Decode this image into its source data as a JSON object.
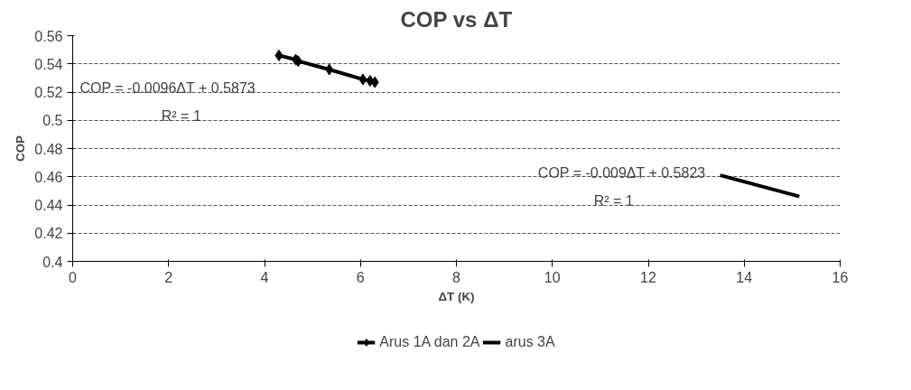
{
  "chart_data": {
    "type": "line",
    "title": "COP vs ΔT",
    "xlabel": "ΔT (K)",
    "ylabel": "COP",
    "xlim": [
      0,
      16
    ],
    "xticks": [
      0,
      2,
      4,
      6,
      8,
      10,
      12,
      14,
      16
    ],
    "ylim": [
      0.4,
      0.56
    ],
    "yticks": [
      0.4,
      0.42,
      0.44,
      0.46,
      0.48,
      0.5,
      0.52,
      0.54,
      0.56
    ],
    "grid": "y",
    "legend": "bottom",
    "series": [
      {
        "name": "Arus 1A dan 2A",
        "color": "#000000",
        "marker": "diamond",
        "x": [
          4.3,
          4.65,
          4.7,
          5.35,
          6.05,
          6.2,
          6.3
        ],
        "values": [
          0.546,
          0.543,
          0.542,
          0.536,
          0.529,
          0.528,
          0.527
        ]
      },
      {
        "name": "arus 3A",
        "color": "#000000",
        "marker": "none",
        "x": [
          13.5,
          15.15
        ],
        "values": [
          0.461,
          0.446
        ]
      }
    ],
    "annotations": [
      "COP = -0.0096ΔT + 0.5873",
      "R² = 1",
      "COP = -0.009ΔT + 0.5823",
      "R² = 1"
    ]
  }
}
